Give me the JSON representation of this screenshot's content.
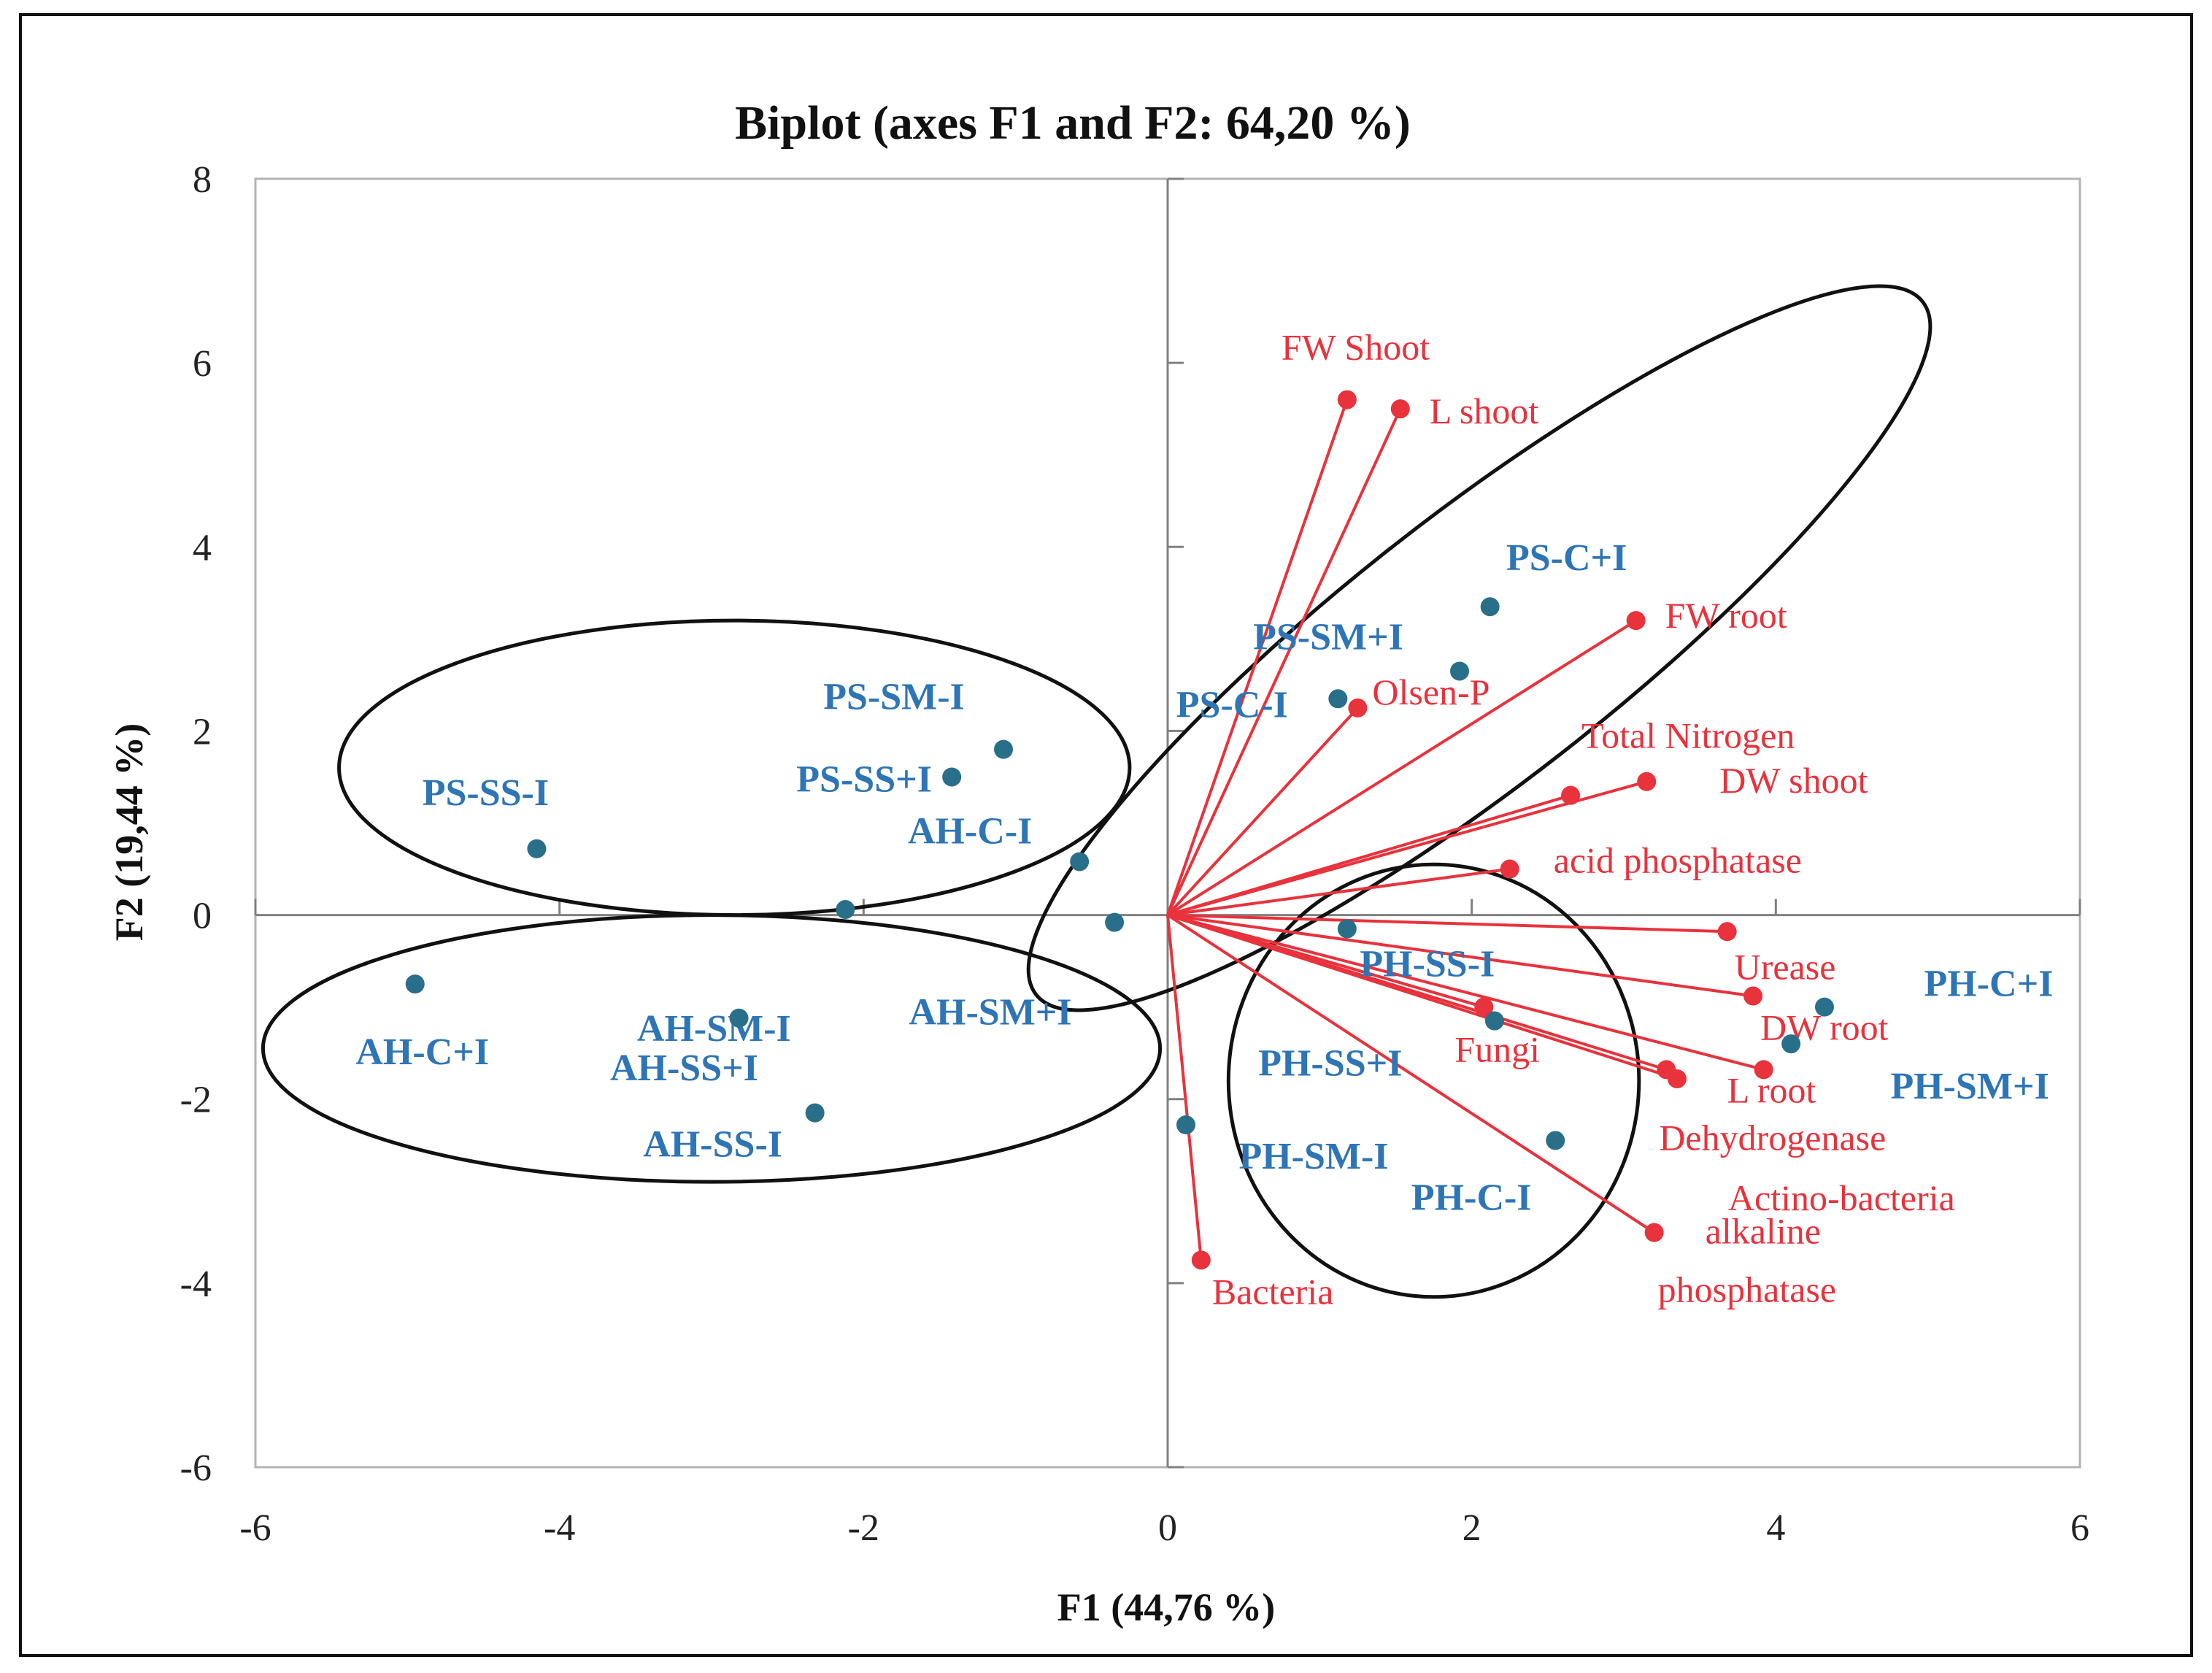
{
  "chart_data": {
    "type": "scatter",
    "subtype": "biplot",
    "title": "Biplot (axes F1 and F2: 64,20 %)",
    "xlabel": "F1 (44,76 %)",
    "ylabel": "F2 (19,44 %)",
    "xlim": [
      -6,
      6
    ],
    "ylim": [
      -6,
      8
    ],
    "xticks": [
      "-6",
      "-4",
      "-2",
      "0",
      "2",
      "4",
      "6"
    ],
    "yticks": [
      "8",
      "6",
      "4",
      "2",
      "0",
      "-2",
      "-4",
      "-6"
    ],
    "grid": false,
    "colors": {
      "observations": "#2a6f8a",
      "observation_labels": "#2e75b6",
      "variables": "#e8323c",
      "ellipses": "#111111",
      "axes": "#808080"
    },
    "observations": [
      {
        "name": "PS-SS-I",
        "x": -4.15,
        "y": 0.72
      },
      {
        "name": "PS-SM-I",
        "x": -1.08,
        "y": 1.8
      },
      {
        "name": "PS-SS+I",
        "x": -1.42,
        "y": 1.5
      },
      {
        "name": "AH-C-I",
        "x": -0.58,
        "y": 0.58
      },
      {
        "name": "AH-SM-I",
        "x": -2.12,
        "y": 0.06
      },
      {
        "name": "AH-SM+I",
        "x": -0.35,
        "y": -0.08
      },
      {
        "name": "AH-C+I",
        "x": -4.95,
        "y": -0.75
      },
      {
        "name": "AH-SS+I",
        "x": -2.82,
        "y": -1.12
      },
      {
        "name": "AH-SS-I",
        "x": -2.32,
        "y": -2.15
      },
      {
        "name": "PS-C+I",
        "x": 2.12,
        "y": 3.35
      },
      {
        "name": "PS-SM+I",
        "x": 1.92,
        "y": 2.65
      },
      {
        "name": "PS-C-I",
        "x": 1.12,
        "y": 2.35
      },
      {
        "name": "PH-SS-I",
        "x": 1.18,
        "y": -0.15
      },
      {
        "name": "PH-SS+I",
        "x": 2.15,
        "y": -1.15
      },
      {
        "name": "PH-SM-I",
        "x": 0.12,
        "y": -2.28
      },
      {
        "name": "PH-C-I",
        "x": 2.55,
        "y": -2.45
      },
      {
        "name": "PH-C+I",
        "x": 4.32,
        "y": -1.0
      },
      {
        "name": "PH-SM+I",
        "x": 4.1,
        "y": -1.4
      }
    ],
    "variables": [
      {
        "name": "FW Shoot",
        "x": 1.18,
        "y": 5.6
      },
      {
        "name": "L shoot",
        "x": 1.53,
        "y": 5.5
      },
      {
        "name": "FW root",
        "x": 3.08,
        "y": 3.2
      },
      {
        "name": "Olsen-P",
        "x": 1.25,
        "y": 2.25
      },
      {
        "name": "Total Nitrogen",
        "x": 2.65,
        "y": 1.3
      },
      {
        "name": "DW shoot",
        "x": 3.15,
        "y": 1.45
      },
      {
        "name": "acid phosphatase",
        "x": 2.25,
        "y": 0.5
      },
      {
        "name": "Urease",
        "x": 3.68,
        "y": -0.18
      },
      {
        "name": "DW root",
        "x": 3.85,
        "y": -0.88
      },
      {
        "name": "L root",
        "x": 3.92,
        "y": -1.68
      },
      {
        "name": "Fungi",
        "x": 2.08,
        "y": -1.0
      },
      {
        "name": "Dehydrogenase",
        "x": 3.28,
        "y": -1.68
      },
      {
        "name": "Actino-bacteria",
        "x": 3.35,
        "y": -1.78
      },
      {
        "name": "alkaline phosphatase",
        "x": 3.2,
        "y": -3.45
      },
      {
        "name": "Bacteria",
        "x": 0.22,
        "y": -3.75
      }
    ],
    "groups": [
      {
        "name": "PS-C, PS-SM+I, PS-C-I cluster",
        "cx": 2.05,
        "cy": 2.9,
        "rx": 3.7,
        "ry": 1.45,
        "angle_deg": 38
      },
      {
        "name": "PS-SS-I, PS-SM-I, PS-SS+I, AH-C-I cluster",
        "cx": -2.85,
        "cy": 1.6,
        "rx": 2.6,
        "ry": 1.6,
        "angle_deg": 0
      },
      {
        "name": "AH cluster",
        "cx": -3.0,
        "cy": -1.45,
        "rx": 2.95,
        "ry": 1.45,
        "angle_deg": 0
      },
      {
        "name": "PH cluster",
        "cx": 1.75,
        "cy": -1.8,
        "rx": 1.35,
        "ry": 2.35,
        "angle_deg": 0
      }
    ]
  }
}
